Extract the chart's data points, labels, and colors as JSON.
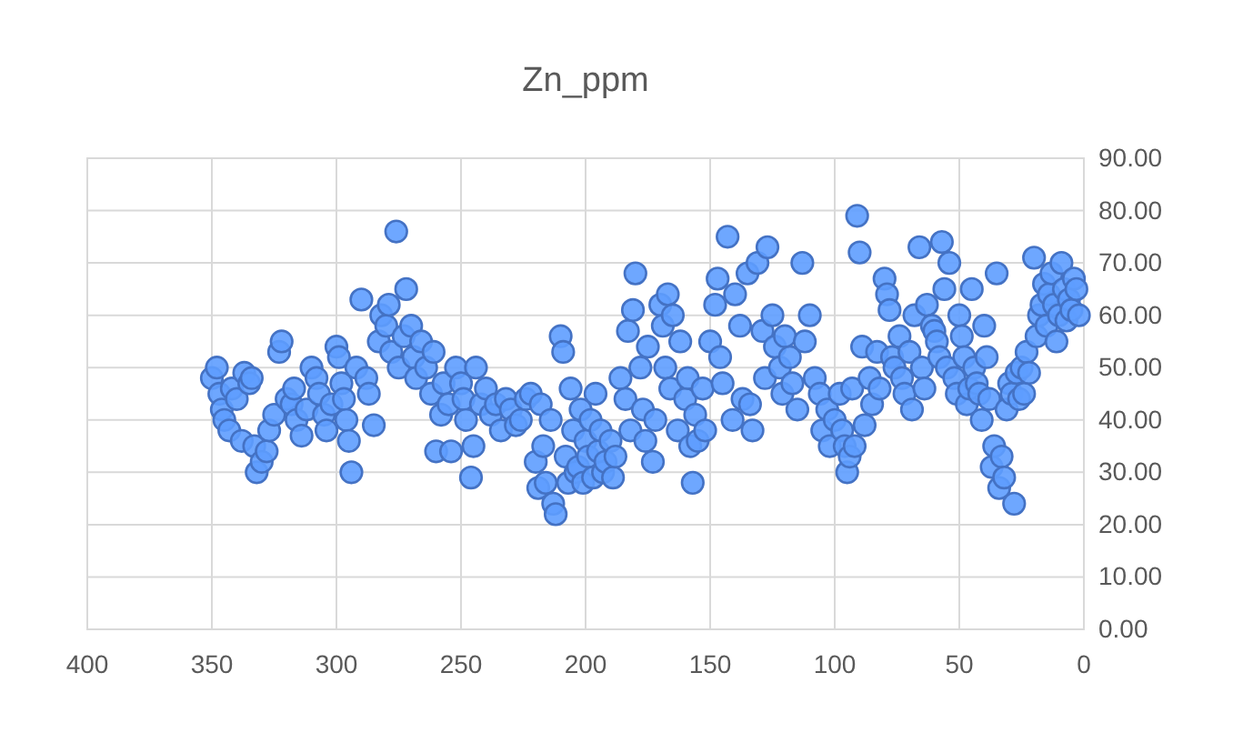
{
  "chart_data": {
    "type": "scatter",
    "title": "Zn_ppm",
    "marker": "circle",
    "grid": true,
    "xlim": [
      400,
      0
    ],
    "xticks": [
      400,
      350,
      300,
      250,
      200,
      150,
      100,
      50,
      0
    ],
    "ylim": [
      0,
      90
    ],
    "yticks": [
      {
        "value": 0,
        "label": "0.00"
      },
      {
        "value": 10,
        "label": "10.00"
      },
      {
        "value": 20,
        "label": "20.00"
      },
      {
        "value": 30,
        "label": "30.00"
      },
      {
        "value": 40,
        "label": "40.00"
      },
      {
        "value": 50,
        "label": "50.00"
      },
      {
        "value": 60,
        "label": "60.00"
      },
      {
        "value": 70,
        "label": "70.00"
      },
      {
        "value": 80,
        "label": "80.00"
      },
      {
        "value": 90,
        "label": "90.00"
      }
    ],
    "series": [
      {
        "color": "#4472c4",
        "x": [
          350,
          348,
          347,
          346,
          345,
          343,
          342,
          340,
          338,
          337,
          335,
          334,
          333,
          332,
          330,
          328,
          327,
          325,
          323,
          322,
          320,
          318,
          317,
          316,
          314,
          312,
          310,
          308,
          307,
          305,
          304,
          302,
          300,
          299,
          298,
          297,
          296,
          295,
          294,
          292,
          290,
          288,
          287,
          285,
          283,
          282,
          280,
          279,
          278,
          276,
          275,
          273,
          272,
          270,
          269,
          268,
          266,
          264,
          262,
          261,
          260,
          258,
          257,
          255,
          254,
          252,
          250,
          249,
          248,
          246,
          245,
          244,
          242,
          240,
          238,
          236,
          234,
          232,
          230,
          228,
          226,
          224,
          222,
          220,
          219,
          218,
          217,
          216,
          214,
          213,
          212,
          210,
          209,
          208,
          207,
          206,
          205,
          204,
          203,
          202,
          201,
          200,
          199,
          198,
          197,
          196,
          195,
          194,
          193,
          192,
          190,
          189,
          188,
          186,
          184,
          183,
          182,
          181,
          180,
          178,
          177,
          176,
          175,
          173,
          172,
          170,
          169,
          168,
          167,
          166,
          165,
          163,
          162,
          160,
          159,
          158,
          157,
          156,
          155,
          153,
          152,
          150,
          148,
          147,
          146,
          145,
          143,
          141,
          140,
          138,
          137,
          135,
          134,
          133,
          131,
          129,
          128,
          127,
          125,
          124,
          122,
          121,
          120,
          118,
          117,
          115,
          113,
          112,
          110,
          108,
          106,
          105,
          103,
          102,
          100,
          98,
          97,
          96,
          95,
          94,
          93,
          92,
          91,
          90,
          89,
          88,
          86,
          85,
          83,
          82,
          80,
          79,
          78,
          77,
          76,
          74,
          73,
          72,
          70,
          69,
          68,
          66,
          65,
          64,
          63,
          61,
          60,
          59,
          58,
          57,
          56,
          55,
          54,
          52,
          51,
          50,
          49,
          48,
          47,
          46,
          45,
          44,
          43,
          42,
          41,
          40,
          39,
          38,
          37,
          36,
          35,
          34,
          33,
          32,
          31,
          30,
          29,
          28,
          27,
          26,
          25,
          24,
          23,
          22,
          20,
          19,
          18,
          17,
          16,
          15,
          14,
          13,
          12,
          11,
          10,
          9,
          8,
          7,
          6,
          5,
          4,
          3,
          2
        ],
        "values": [
          48,
          50,
          45,
          42,
          40,
          38,
          46,
          44,
          36,
          49,
          47,
          48,
          35,
          30,
          32,
          34,
          38,
          41,
          53,
          55,
          44,
          43,
          46,
          40,
          37,
          42,
          50,
          48,
          45,
          41,
          38,
          43,
          54,
          52,
          47,
          44,
          40,
          36,
          30,
          50,
          63,
          48,
          45,
          39,
          55,
          60,
          58,
          62,
          53,
          76,
          50,
          56,
          65,
          58,
          52,
          48,
          55,
          50,
          45,
          53,
          34,
          41,
          47,
          43,
          34,
          50,
          47,
          44,
          40,
          29,
          35,
          50,
          43,
          46,
          41,
          43,
          38,
          44,
          42,
          39,
          40,
          44,
          45,
          32,
          27,
          43,
          35,
          28,
          40,
          24,
          22,
          56,
          53,
          33,
          28,
          46,
          38,
          30,
          31,
          42,
          28,
          36,
          33,
          40,
          29,
          45,
          34,
          38,
          30,
          32,
          36,
          29,
          33,
          48,
          44,
          57,
          38,
          61,
          68,
          50,
          42,
          36,
          54,
          32,
          40,
          62,
          58,
          50,
          64,
          46,
          60,
          38,
          55,
          44,
          48,
          35,
          28,
          41,
          36,
          46,
          38,
          55,
          62,
          67,
          52,
          47,
          75,
          40,
          64,
          58,
          44,
          68,
          43,
          38,
          70,
          57,
          48,
          73,
          60,
          54,
          50,
          45,
          56,
          52,
          47,
          42,
          70,
          55,
          60,
          48,
          45,
          38,
          42,
          35,
          40,
          45,
          38,
          35,
          30,
          33,
          46,
          35,
          79,
          72,
          54,
          39,
          48,
          43,
          53,
          46,
          67,
          64,
          61,
          52,
          50,
          56,
          48,
          45,
          53,
          42,
          60,
          73,
          50,
          46,
          62,
          58,
          57,
          55,
          52,
          74,
          65,
          50,
          70,
          48,
          45,
          60,
          56,
          52,
          43,
          46,
          65,
          50,
          47,
          45,
          40,
          58,
          52,
          44,
          31,
          35,
          68,
          27,
          33,
          29,
          42,
          47,
          45,
          24,
          49,
          44,
          50,
          45,
          53,
          49,
          71,
          56,
          60,
          62,
          66,
          58,
          64,
          68,
          62,
          55,
          60,
          70,
          65,
          59,
          63,
          61,
          67,
          65,
          60
        ]
      }
    ]
  }
}
